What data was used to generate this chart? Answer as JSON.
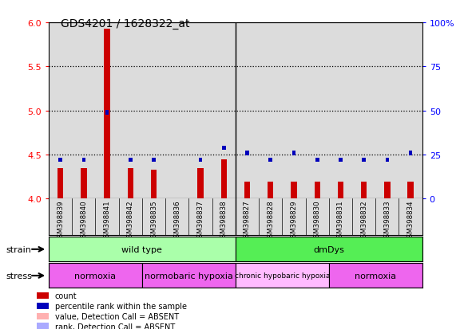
{
  "title": "GDS4201 / 1628322_at",
  "samples": [
    "GSM398839",
    "GSM398840",
    "GSM398841",
    "GSM398842",
    "GSM398835",
    "GSM398836",
    "GSM398837",
    "GSM398838",
    "GSM398827",
    "GSM398828",
    "GSM398829",
    "GSM398830",
    "GSM398831",
    "GSM398832",
    "GSM398833",
    "GSM398834"
  ],
  "red_values": [
    4.35,
    4.35,
    5.93,
    4.35,
    4.33,
    4.0,
    4.35,
    4.45,
    4.19,
    4.19,
    4.19,
    4.19,
    4.19,
    4.19,
    4.19,
    4.19
  ],
  "blue_values": [
    22,
    22,
    49,
    22,
    22,
    null,
    22,
    29,
    26,
    22,
    26,
    22,
    22,
    22,
    22,
    26
  ],
  "absent_red": [
    false,
    false,
    false,
    false,
    false,
    true,
    false,
    false,
    false,
    false,
    false,
    false,
    false,
    false,
    false,
    false
  ],
  "absent_blue": [
    false,
    false,
    false,
    false,
    false,
    true,
    false,
    false,
    false,
    false,
    false,
    false,
    false,
    false,
    false,
    false
  ],
  "ylim_left": [
    4.0,
    6.0
  ],
  "ylim_right": [
    0,
    100
  ],
  "yticks_left": [
    4.0,
    4.5,
    5.0,
    5.5,
    6.0
  ],
  "yticks_right": [
    0,
    25,
    50,
    75,
    100
  ],
  "strain_groups": [
    {
      "label": "wild type",
      "start": 0,
      "end": 8,
      "color": "#90EE90"
    },
    {
      "label": "dmDys",
      "start": 8,
      "end": 16,
      "color": "#66DD66"
    }
  ],
  "stress_groups": [
    {
      "label": "normoxia",
      "start": 0,
      "end": 4,
      "color": "#EE66EE"
    },
    {
      "label": "normobaric hypoxia",
      "start": 4,
      "end": 8,
      "color": "#EE66EE"
    },
    {
      "label": "chronic hypobaric hypoxia",
      "start": 8,
      "end": 12,
      "color": "#FFAAFF"
    },
    {
      "label": "normoxia",
      "start": 12,
      "end": 16,
      "color": "#EE66EE"
    }
  ],
  "red_bar_width": 0.25,
  "blue_square_size": 0.08,
  "background_color": "#DCDCDC",
  "red_color": "#CC0000",
  "blue_color": "#0000BB",
  "absent_red_color": "#FFB0B0",
  "absent_blue_color": "#AAAAFF",
  "dotted_yticks": [
    4.5,
    5.0,
    5.5
  ],
  "wild_type_color": "#AAFFAA",
  "dmDys_color": "#55EE55"
}
